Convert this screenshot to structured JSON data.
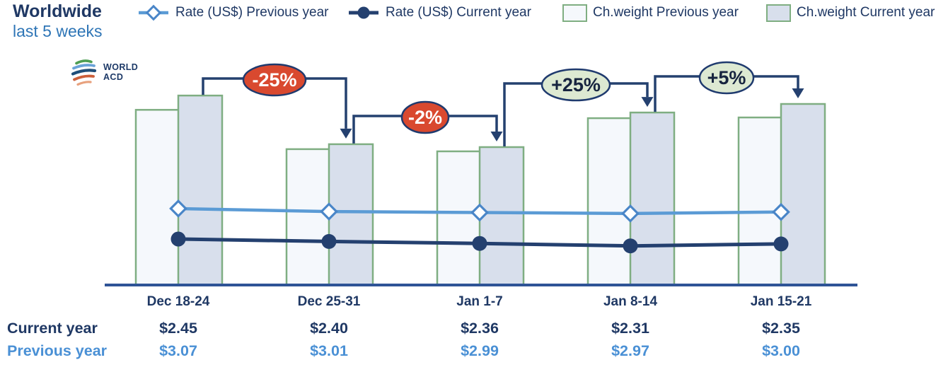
{
  "header": {
    "title": "Worldwide",
    "subtitle": "last 5 weeks"
  },
  "logo": {
    "line1": "WORLD",
    "line2": "ACD"
  },
  "legend": {
    "items": [
      {
        "label": "Rate (US$) Previous year",
        "swatch": "line-diamond",
        "color": "#5b9bd5"
      },
      {
        "label": "Rate (US$) Current year",
        "swatch": "line-circle",
        "color": "#24406f"
      },
      {
        "label": "Ch.weight Previous year",
        "swatch": "box",
        "fill": "#f5f8fc",
        "border": "#7fae82"
      },
      {
        "label": "Ch.weight Current year",
        "swatch": "box",
        "fill": "#d8dfec",
        "border": "#7fae82"
      }
    ]
  },
  "chart_data": {
    "type": "combo-bar-line",
    "categories": [
      "Dec 18-24",
      "Dec 25-31",
      "Jan 1-7",
      "Jan 8-14",
      "Jan 15-21"
    ],
    "series": [
      {
        "name": "Rate (US$) Previous year",
        "type": "line",
        "unit": "US$",
        "values": [
          3.07,
          3.01,
          2.99,
          2.97,
          3.0
        ]
      },
      {
        "name": "Rate (US$) Current year",
        "type": "line",
        "unit": "US$",
        "values": [
          2.45,
          2.4,
          2.36,
          2.31,
          2.35
        ]
      },
      {
        "name": "Ch.weight Previous year",
        "type": "bar",
        "unit": "relative index (no axis shown)",
        "values": [
          127.0,
          98.5,
          96.9,
          121.0,
          121.5
        ]
      },
      {
        "name": "Ch.weight Current year",
        "type": "bar",
        "unit": "relative index (no axis shown)",
        "values": [
          137.4,
          102.1,
          100.0,
          125.1,
          131.3
        ]
      }
    ],
    "change_labels": [
      {
        "from": "Dec 18-24",
        "to": "Dec 25-31",
        "label": "-25%",
        "sentiment": "negative"
      },
      {
        "from": "Dec 25-31",
        "to": "Jan 1-7",
        "label": "-2%",
        "sentiment": "negative"
      },
      {
        "from": "Jan 1-7",
        "to": "Jan 8-14",
        "label": "+25%",
        "sentiment": "positive"
      },
      {
        "from": "Jan 8-14",
        "to": "Jan 15-21",
        "label": "+5%",
        "sentiment": "positive"
      }
    ],
    "legend_position": "top",
    "grid": false,
    "y_axis_visible": false
  },
  "table": {
    "rows": [
      {
        "label": "Current year"
      },
      {
        "label": "Previous year"
      }
    ]
  },
  "colors": {
    "navy_text": "#1f3864",
    "blue_text": "#2e75b6",
    "light_blue_values": "#4a90d5",
    "prev_rate_line": "#5b9bd5",
    "curr_rate_line": "#24406f",
    "bar_border_green": "#7fae82",
    "bar_prev_fill": "#f5f8fc",
    "bar_curr_fill": "#d8dfec",
    "axis_line": "#2f5496",
    "callout_negative_fill": "#d9492f",
    "callout_positive_fill": "#dde9d2",
    "callout_border": "#1f3a6e"
  }
}
